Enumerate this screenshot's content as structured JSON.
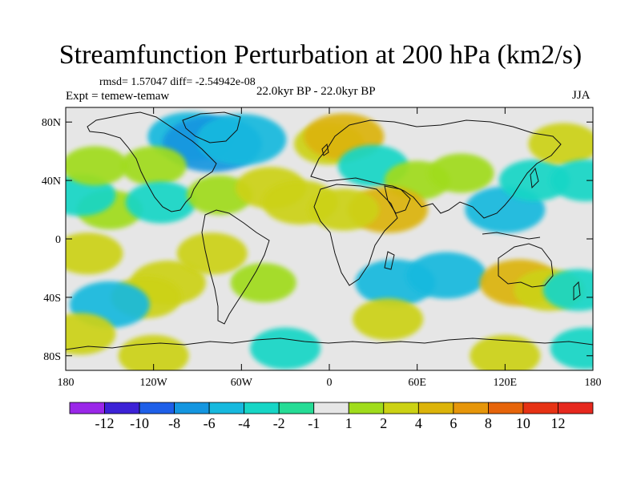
{
  "title": "Streamfunction Perturbation at 200 hPa (km2/s)",
  "stats": "rmsd= 1.57047 diff= -2.54942e-08",
  "experiment": "Expt = temew-temaw",
  "period": "22.0kyr BP - 22.0kyr BP",
  "season": "JJA",
  "map": {
    "lon_range": [
      -180,
      180
    ],
    "lat_range": [
      -90,
      90
    ],
    "x_ticks": [
      {
        "value": -180,
        "label": "180"
      },
      {
        "value": -120,
        "label": "120W"
      },
      {
        "value": -60,
        "label": "60W"
      },
      {
        "value": 0,
        "label": "0"
      },
      {
        "value": 60,
        "label": "60E"
      },
      {
        "value": 120,
        "label": "120E"
      },
      {
        "value": 180,
        "label": "180"
      }
    ],
    "y_ticks": [
      {
        "value": 80,
        "label": "80N"
      },
      {
        "value": 40,
        "label": "40N"
      },
      {
        "value": 0,
        "label": "0"
      },
      {
        "value": -40,
        "label": "40S"
      },
      {
        "value": -80,
        "label": "80S"
      }
    ]
  },
  "colorbar": {
    "colors": [
      "#9a27e8",
      "#3c22d6",
      "#1e5fe8",
      "#1496e0",
      "#17b9de",
      "#17d6c6",
      "#26dc96",
      "#e6e6e6",
      "#a0dc1c",
      "#ccd214",
      "#dcb40a",
      "#e6960a",
      "#e6640a",
      "#e63214",
      "#e6281e"
    ],
    "labels": [
      "-12",
      "-10",
      "-8",
      "-6",
      "-4",
      "-2",
      "-1",
      "1",
      "2",
      "4",
      "6",
      "8",
      "10",
      "12"
    ]
  },
  "anomaly_fields": [
    {
      "lon": -150,
      "lat": 20,
      "value": 1.5
    },
    {
      "lon": -170,
      "lat": 30,
      "value": -2
    },
    {
      "lon": -95,
      "lat": 70,
      "value": -3.5
    },
    {
      "lon": -80,
      "lat": 65,
      "value": -5
    },
    {
      "lon": -60,
      "lat": 68,
      "value": -4
    },
    {
      "lon": -120,
      "lat": 50,
      "value": 1.5
    },
    {
      "lon": -160,
      "lat": 50,
      "value": 1.5
    },
    {
      "lon": -115,
      "lat": 25,
      "value": -2
    },
    {
      "lon": -75,
      "lat": 30,
      "value": 1.5
    },
    {
      "lon": -40,
      "lat": 35,
      "value": 2
    },
    {
      "lon": -20,
      "lat": 25,
      "value": 2.5
    },
    {
      "lon": 0,
      "lat": 65,
      "value": 2
    },
    {
      "lon": 10,
      "lat": 70,
      "value": 3
    },
    {
      "lon": 30,
      "lat": 50,
      "value": -2
    },
    {
      "lon": 60,
      "lat": 40,
      "value": 1.5
    },
    {
      "lon": 90,
      "lat": 45,
      "value": 1.5
    },
    {
      "lon": 40,
      "lat": 20,
      "value": 3
    },
    {
      "lon": 10,
      "lat": 20,
      "value": 2
    },
    {
      "lon": 120,
      "lat": 20,
      "value": -3
    },
    {
      "lon": 140,
      "lat": 40,
      "value": -2
    },
    {
      "lon": 160,
      "lat": 65,
      "value": 2
    },
    {
      "lon": 175,
      "lat": 40,
      "value": -2
    },
    {
      "lon": -165,
      "lat": -10,
      "value": 2
    },
    {
      "lon": -110,
      "lat": -30,
      "value": 2.5
    },
    {
      "lon": -125,
      "lat": -40,
      "value": 2
    },
    {
      "lon": -150,
      "lat": -45,
      "value": -3
    },
    {
      "lon": -80,
      "lat": -10,
      "value": 2
    },
    {
      "lon": -45,
      "lat": -30,
      "value": 1.5
    },
    {
      "lon": 45,
      "lat": -30,
      "value": -3
    },
    {
      "lon": 80,
      "lat": -25,
      "value": -3
    },
    {
      "lon": 130,
      "lat": -30,
      "value": 3
    },
    {
      "lon": 150,
      "lat": -35,
      "value": 2
    },
    {
      "lon": 170,
      "lat": -35,
      "value": -2
    },
    {
      "lon": 40,
      "lat": -55,
      "value": 2
    },
    {
      "lon": -170,
      "lat": -65,
      "value": 2
    },
    {
      "lon": -120,
      "lat": -80,
      "value": 2
    },
    {
      "lon": -30,
      "lat": -75,
      "value": -2
    },
    {
      "lon": 120,
      "lat": -80,
      "value": 2
    },
    {
      "lon": 175,
      "lat": -75,
      "value": -2
    }
  ]
}
